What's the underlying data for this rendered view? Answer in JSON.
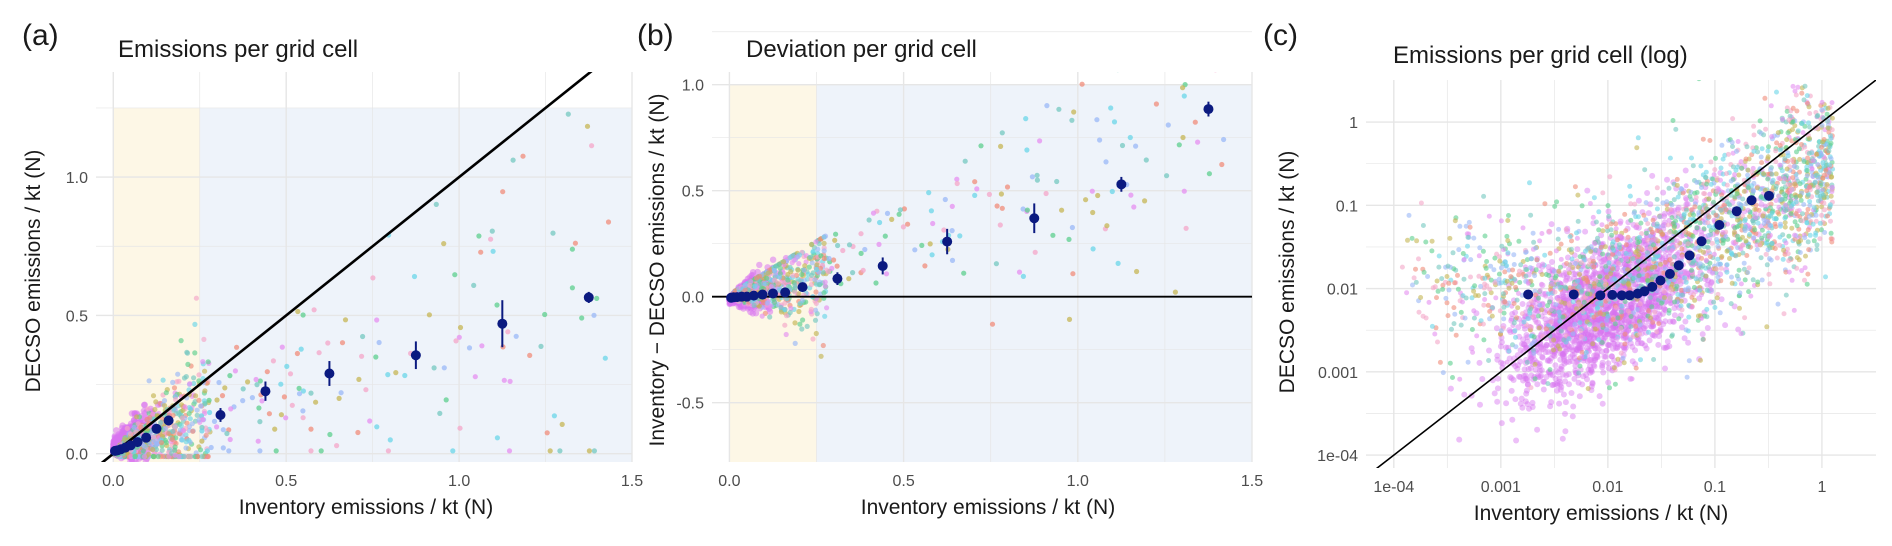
{
  "chart_data": [
    {
      "type": "scatter",
      "tag": "(a)",
      "title": "Emissions per grid cell",
      "xlabel": "Inventory emissions / kt (N)",
      "ylabel": "DECSO emissions / kt (N)",
      "xlim": [
        -0.05,
        1.5
      ],
      "ylim": [
        -0.03,
        1.38
      ],
      "xticks": [
        0.0,
        0.5,
        1.0,
        1.5
      ],
      "xtick_labels": [
        "0.0",
        "0.5",
        "1.0",
        "1.5"
      ],
      "yticks": [
        0.0,
        0.5,
        1.0
      ],
      "ytick_labels": [
        "0.0",
        "0.5",
        "1.0"
      ],
      "grid": true,
      "shaded_regions": [
        {
          "x": [
            0.0,
            0.25
          ],
          "y": [
            -0.03,
            1.25
          ],
          "color": "#fdf7e6"
        },
        {
          "x": [
            0.25,
            1.5
          ],
          "y": [
            -0.03,
            1.25
          ],
          "color": "#eef3fa"
        }
      ],
      "reference_line": {
        "type": "identity"
      },
      "series": [
        {
          "kind": "binned_mean",
          "x": [
            0.005,
            0.012,
            0.022,
            0.035,
            0.05,
            0.07,
            0.095,
            0.125,
            0.16,
            0.31,
            0.44,
            0.625,
            0.875,
            1.125,
            1.375
          ],
          "y": [
            0.01,
            0.012,
            0.016,
            0.022,
            0.03,
            0.042,
            0.058,
            0.09,
            0.12,
            0.14,
            0.226,
            0.29,
            0.356,
            0.47,
            0.565
          ],
          "err": [
            0.005,
            0.005,
            0.006,
            0.007,
            0.008,
            0.01,
            0.012,
            0.015,
            0.018,
            0.025,
            0.035,
            0.045,
            0.05,
            0.085,
            0.02
          ]
        }
      ]
    },
    {
      "type": "scatter",
      "tag": "(b)",
      "title": "Deviation per grid cell",
      "xlabel": "Inventory emissions / kt (N)",
      "ylabel": "Inventory − DECSO emissions / kt (N)",
      "xlim": [
        -0.05,
        1.5
      ],
      "ylim": [
        -0.78,
        1.06
      ],
      "xticks": [
        0.0,
        0.5,
        1.0,
        1.5
      ],
      "xtick_labels": [
        "0.0",
        "0.5",
        "1.0",
        "1.5"
      ],
      "yticks": [
        -0.5,
        0.0,
        0.5,
        1.0
      ],
      "ytick_labels": [
        "-0.5",
        "0.0",
        "0.5",
        "1.0"
      ],
      "grid": true,
      "shaded_regions": [
        {
          "x": [
            0.0,
            0.25
          ],
          "y": [
            -0.78,
            1.0
          ],
          "color": "#fdf7e6"
        },
        {
          "x": [
            0.25,
            1.5
          ],
          "y": [
            -0.78,
            1.0
          ],
          "color": "#eef3fa"
        }
      ],
      "reference_line": {
        "type": "horizontal",
        "y": 0
      },
      "series": [
        {
          "kind": "binned_mean",
          "x": [
            0.005,
            0.012,
            0.022,
            0.035,
            0.05,
            0.07,
            0.095,
            0.125,
            0.16,
            0.21,
            0.31,
            0.44,
            0.625,
            0.875,
            1.125,
            1.375
          ],
          "y": [
            -0.005,
            -0.003,
            -0.002,
            0.0,
            0.0,
            0.005,
            0.01,
            0.015,
            0.02,
            0.045,
            0.085,
            0.145,
            0.26,
            0.37,
            0.53,
            0.885
          ],
          "err": [
            0.003,
            0.003,
            0.003,
            0.003,
            0.004,
            0.005,
            0.006,
            0.008,
            0.01,
            0.015,
            0.03,
            0.04,
            0.06,
            0.07,
            0.035,
            0.035
          ]
        }
      ]
    },
    {
      "type": "scatter",
      "tag": "(c)",
      "title": "Emissions per grid cell (log)",
      "xlabel": "Inventory emissions / kt (N)",
      "ylabel": "DECSO emissions / kt (N)",
      "xscale": "log",
      "yscale": "log",
      "xlim": [
        5.5e-05,
        3.2
      ],
      "ylim": [
        7e-05,
        3.2
      ],
      "xticks": [
        0.0001,
        0.001,
        0.01,
        0.1,
        1
      ],
      "xtick_labels": [
        "1e-04",
        "0.001",
        "0.01",
        "0.1",
        "1"
      ],
      "yticks": [
        0.0001,
        0.001,
        0.01,
        0.1,
        1
      ],
      "ytick_labels": [
        "1e-04",
        "0.001",
        "0.01",
        "0.1",
        "1"
      ],
      "grid": true,
      "reference_line": {
        "type": "identity"
      },
      "series": [
        {
          "kind": "binned_mean",
          "x": [
            0.0018,
            0.0048,
            0.0085,
            0.011,
            0.0135,
            0.016,
            0.019,
            0.022,
            0.026,
            0.031,
            0.038,
            0.046,
            0.058,
            0.075,
            0.11,
            0.16,
            0.22,
            0.32
          ],
          "y": [
            0.0085,
            0.0085,
            0.0083,
            0.0084,
            0.0083,
            0.0083,
            0.0087,
            0.0093,
            0.0105,
            0.0125,
            0.015,
            0.019,
            0.025,
            0.037,
            0.058,
            0.085,
            0.115,
            0.13
          ],
          "err": [
            0,
            0,
            0,
            0,
            0,
            0,
            0,
            0,
            0,
            0,
            0,
            0,
            0,
            0,
            0,
            0,
            0,
            0
          ]
        }
      ]
    }
  ],
  "palette": {
    "points": [
      "#f4a6c8",
      "#6ad5e8",
      "#c5b654",
      "#5ccf8d",
      "#f08c7a",
      "#9ab8f7",
      "#e58ff0",
      "#74c8c0"
    ],
    "dense": "#d874f0",
    "mean": "#0b1a80",
    "refline": "#000000",
    "grid": "#e6e6e6"
  }
}
